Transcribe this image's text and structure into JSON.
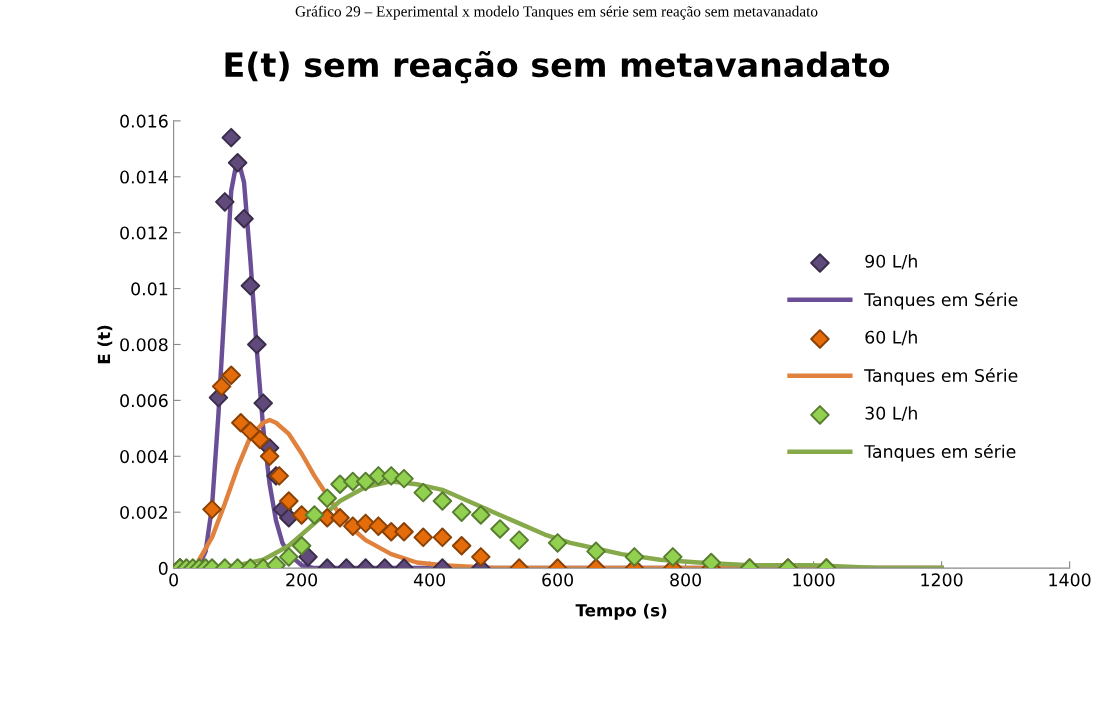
{
  "chart_data": {
    "type": "scatter",
    "title": "E(t) sem reação sem metavanadato",
    "xlabel": "Tempo (s)",
    "ylabel": "E (t)",
    "annotations": [
      "Gráfico 29 – Experimental x modelo Tanques em série sem reação sem metavanadato"
    ],
    "xlim": [
      0,
      1400
    ],
    "xticks": [
      0,
      200,
      400,
      600,
      800,
      1000,
      1200,
      1400
    ],
    "ylim": [
      0,
      0.016
    ],
    "yticks": [
      0,
      0.002,
      0.004,
      0.006,
      0.008,
      0.01,
      0.012,
      0.014,
      0.016
    ],
    "grid": false,
    "legend": "right",
    "series": [
      {
        "name": "90 L/h",
        "marker": "diamond",
        "color": "#604a7b",
        "x": [
          10,
          20,
          30,
          40,
          50,
          60,
          70,
          80,
          90,
          100,
          110,
          120,
          130,
          140,
          150,
          160,
          170,
          180,
          210,
          240,
          270,
          300,
          330,
          360,
          420,
          480
        ],
        "values": [
          0,
          null,
          null,
          null,
          null,
          null,
          0.0061,
          0.0131,
          0.0154,
          0.0145,
          0.0125,
          0.0101,
          0.008,
          0.0059,
          0.0043,
          0.0033,
          0.0021,
          0.0018,
          0.0004,
          0,
          0,
          0,
          0,
          0,
          0,
          0
        ]
      },
      {
        "name": "Tanques em Série",
        "type": "line",
        "marker": "none",
        "color": "#6b4f96",
        "x": [
          40,
          50,
          60,
          70,
          80,
          90,
          100,
          110,
          120,
          130,
          140,
          150,
          160,
          170,
          180,
          200,
          220,
          300,
          600,
          1200
        ],
        "values": [
          0.0001,
          0.0006,
          0.0022,
          0.0055,
          0.0095,
          0.0135,
          0.0147,
          0.0138,
          0.011,
          0.0078,
          0.005,
          0.003,
          0.0017,
          0.0009,
          0.0005,
          0.0001,
          0,
          0,
          0,
          0
        ]
      },
      {
        "name": "60 L/h",
        "marker": "diamond",
        "color": "#e46c0a",
        "x": [
          10,
          20,
          30,
          40,
          50,
          60,
          75,
          90,
          105,
          120,
          135,
          150,
          165,
          180,
          200,
          240,
          260,
          280,
          300,
          320,
          340,
          360,
          390,
          420,
          450,
          480,
          540,
          600,
          660,
          720,
          780,
          840,
          900,
          960,
          1020
        ],
        "values": [
          0,
          null,
          null,
          null,
          null,
          0.0021,
          0.0065,
          0.0069,
          0.0052,
          0.0049,
          0.0046,
          0.004,
          0.0033,
          0.0024,
          0.0019,
          0.0018,
          0.0018,
          0.0015,
          0.0016,
          0.0015,
          0.0013,
          0.0013,
          0.0011,
          0.0011,
          0.0008,
          0.0004,
          0,
          0,
          0,
          0,
          0,
          0,
          0,
          0,
          0
        ]
      },
      {
        "name": "Tanques em Série",
        "type": "line",
        "marker": "none",
        "color": "#e0823d",
        "x": [
          40,
          60,
          80,
          100,
          120,
          140,
          150,
          160,
          180,
          200,
          220,
          240,
          260,
          280,
          300,
          340,
          380,
          420,
          500,
          1200
        ],
        "values": [
          0.0003,
          0.0011,
          0.0023,
          0.0036,
          0.0047,
          0.0052,
          0.0053,
          0.0052,
          0.0048,
          0.0041,
          0.0033,
          0.0026,
          0.0019,
          0.0014,
          0.001,
          0.0005,
          0.0002,
          0.0001,
          0,
          0
        ]
      },
      {
        "name": "30 L/h",
        "marker": "diamond",
        "color": "#92d050",
        "x": [
          10,
          20,
          30,
          40,
          50,
          60,
          80,
          100,
          120,
          140,
          160,
          180,
          200,
          220,
          240,
          260,
          280,
          300,
          320,
          340,
          360,
          390,
          420,
          450,
          480,
          510,
          540,
          600,
          660,
          720,
          780,
          840,
          900,
          960,
          1020
        ],
        "values": [
          0,
          0,
          0,
          0,
          0,
          0,
          0,
          0,
          0,
          0,
          0.0001,
          0.0004,
          0.0008,
          0.0019,
          0.0025,
          0.003,
          0.0031,
          0.0031,
          0.0033,
          0.0033,
          0.0032,
          0.0027,
          0.0024,
          0.002,
          0.0019,
          0.0014,
          0.001,
          0.0009,
          0.0006,
          0.0004,
          0.0004,
          0.0002,
          0,
          0,
          0
        ]
      },
      {
        "name": "Tanques em série",
        "type": "line",
        "marker": "none",
        "color": "#86a94a",
        "x": [
          0,
          60,
          100,
          140,
          180,
          220,
          260,
          300,
          340,
          380,
          420,
          460,
          500,
          540,
          580,
          620,
          660,
          700,
          760,
          820,
          900,
          1000,
          1100,
          1200
        ],
        "values": [
          0,
          0,
          0.0001,
          0.0003,
          0.0008,
          0.0016,
          0.0024,
          0.0029,
          0.0031,
          0.003,
          0.0028,
          0.0024,
          0.002,
          0.0016,
          0.0012,
          0.0009,
          0.0007,
          0.0005,
          0.0003,
          0.0002,
          0.0001,
          0.0001,
          0,
          0
        ]
      }
    ]
  }
}
